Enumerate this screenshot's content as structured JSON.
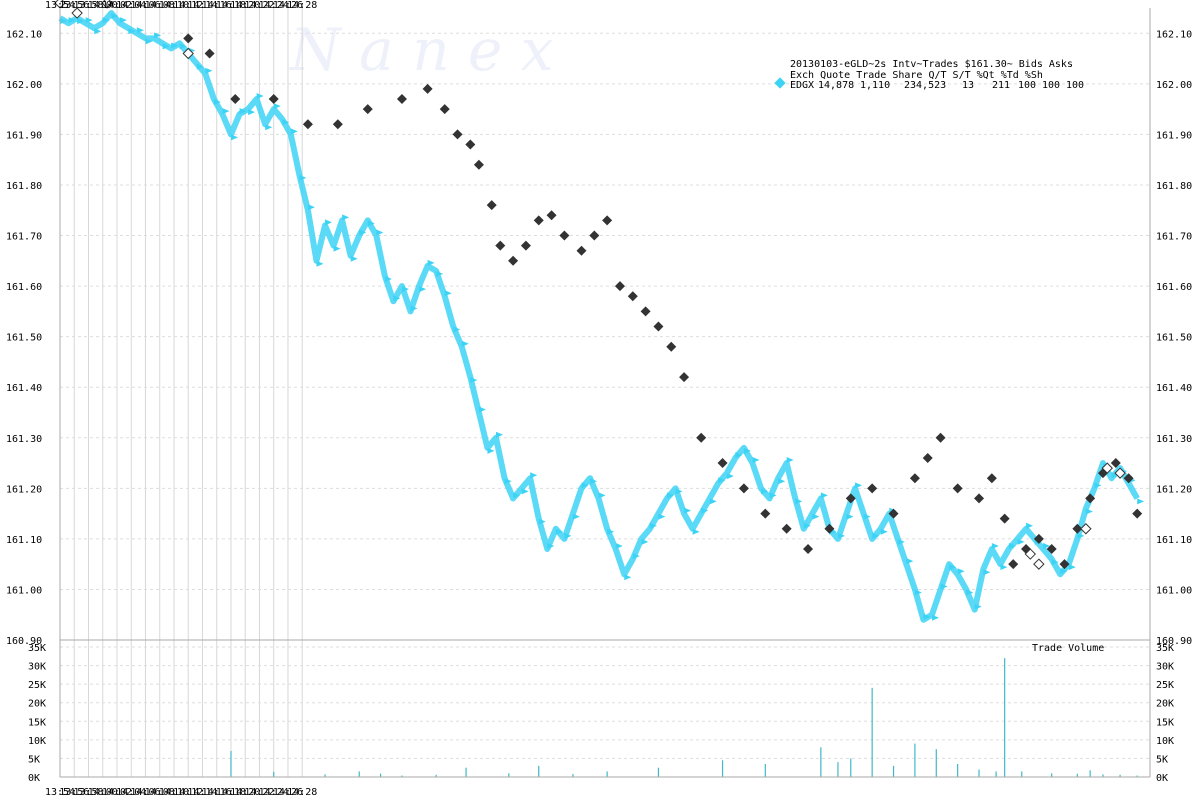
{
  "watermark": "N a n e x",
  "chart_data": [
    {
      "type": "scatter",
      "ylim": [
        160.9,
        162.15
      ],
      "x_labels": [
        "13:54",
        "13:56",
        "13:58",
        "14:00",
        "14:02",
        "14:04",
        "14:06",
        "14:08",
        "14:10",
        "14:12",
        "14:14",
        "14:16",
        "14:18",
        "14:20",
        "14:22",
        "14:24",
        "14:26",
        "14:28"
      ],
      "y_ticks": [
        "162.10",
        "162.00",
        "161.90",
        "161.80",
        "161.70",
        "161.60",
        "161.50",
        "161.40",
        "161.30",
        "161.20",
        "161.10",
        "161.00",
        "160.90"
      ],
      "grid": true,
      "legend": {
        "title_line": "20130103-eGLD~2s Intv~Trades $161.30~ Bids  Asks",
        "header_line": "Exch  Quote Trade   Share  Q/T   S/T  %Qt %Td %Sh",
        "row": {
          "exch": "EDGX",
          "quote": "14,878",
          "trade": "1,110",
          "share": "234,523",
          "qt": "13",
          "st": "211",
          "pct_qt": "100",
          "pct_td": "100",
          "pct_sh": "100"
        },
        "placement": "top-right"
      },
      "colors": {
        "quotes": "#3dd3f5",
        "trades": "#333333",
        "trade_outline": "#ffffff"
      },
      "series": [
        {
          "kind": "quotes",
          "values": [
            [
              13.9,
              162.13
            ],
            [
              13.92,
              162.12
            ],
            [
              13.94,
              162.13
            ],
            [
              13.96,
              162.12
            ],
            [
              13.98,
              162.11
            ],
            [
              14.0,
              162.12
            ],
            [
              14.02,
              162.14
            ],
            [
              14.04,
              162.12
            ],
            [
              14.06,
              162.11
            ],
            [
              14.08,
              162.1
            ],
            [
              14.1,
              162.09
            ],
            [
              14.12,
              162.09
            ],
            [
              14.14,
              162.08
            ],
            [
              14.16,
              162.07
            ],
            [
              14.18,
              162.08
            ],
            [
              14.2,
              162.06
            ],
            [
              14.22,
              162.04
            ],
            [
              14.24,
              162.02
            ],
            [
              14.26,
              161.97
            ],
            [
              14.28,
              161.94
            ],
            [
              14.3,
              161.9
            ],
            [
              14.32,
              161.94
            ],
            [
              14.34,
              161.95
            ],
            [
              14.36,
              161.97
            ],
            [
              14.38,
              161.92
            ],
            [
              14.4,
              161.95
            ],
            [
              14.42,
              161.93
            ],
            [
              14.44,
              161.9
            ],
            [
              14.46,
              161.82
            ],
            [
              14.48,
              161.75
            ],
            [
              14.5,
              161.65
            ],
            [
              14.52,
              161.72
            ],
            [
              14.54,
              161.68
            ],
            [
              14.56,
              161.73
            ],
            [
              14.58,
              161.66
            ],
            [
              14.6,
              161.7
            ],
            [
              14.62,
              161.73
            ],
            [
              14.64,
              161.7
            ],
            [
              14.66,
              161.62
            ],
            [
              14.68,
              161.57
            ],
            [
              14.7,
              161.6
            ],
            [
              14.72,
              161.55
            ],
            [
              14.74,
              161.6
            ],
            [
              14.76,
              161.64
            ],
            [
              14.78,
              161.63
            ],
            [
              14.8,
              161.58
            ],
            [
              14.82,
              161.52
            ],
            [
              14.84,
              161.48
            ],
            [
              14.86,
              161.42
            ],
            [
              14.88,
              161.35
            ],
            [
              14.9,
              161.28
            ],
            [
              14.92,
              161.3
            ],
            [
              14.94,
              161.22
            ],
            [
              14.96,
              161.18
            ],
            [
              14.98,
              161.2
            ],
            [
              15.0,
              161.22
            ],
            [
              15.02,
              161.14
            ],
            [
              15.04,
              161.08
            ],
            [
              15.06,
              161.12
            ],
            [
              15.08,
              161.1
            ],
            [
              15.1,
              161.15
            ],
            [
              15.12,
              161.2
            ],
            [
              15.14,
              161.22
            ],
            [
              15.16,
              161.18
            ],
            [
              15.18,
              161.12
            ],
            [
              15.2,
              161.08
            ],
            [
              15.22,
              161.03
            ],
            [
              15.24,
              161.06
            ],
            [
              15.26,
              161.1
            ],
            [
              15.28,
              161.12
            ],
            [
              15.3,
              161.15
            ],
            [
              15.32,
              161.18
            ],
            [
              15.34,
              161.2
            ],
            [
              15.36,
              161.15
            ],
            [
              15.38,
              161.12
            ],
            [
              15.4,
              161.15
            ],
            [
              15.42,
              161.18
            ],
            [
              15.44,
              161.21
            ],
            [
              15.46,
              161.23
            ],
            [
              15.48,
              161.26
            ],
            [
              15.5,
              161.28
            ],
            [
              15.52,
              161.25
            ],
            [
              15.54,
              161.2
            ],
            [
              15.56,
              161.18
            ],
            [
              15.58,
              161.22
            ],
            [
              15.6,
              161.25
            ],
            [
              15.62,
              161.18
            ],
            [
              15.64,
              161.12
            ],
            [
              15.66,
              161.15
            ],
            [
              15.68,
              161.18
            ],
            [
              15.7,
              161.12
            ],
            [
              15.72,
              161.1
            ],
            [
              15.74,
              161.15
            ],
            [
              15.76,
              161.2
            ],
            [
              15.78,
              161.15
            ],
            [
              15.8,
              161.1
            ],
            [
              15.82,
              161.12
            ],
            [
              15.84,
              161.15
            ],
            [
              15.86,
              161.1
            ],
            [
              15.88,
              161.05
            ],
            [
              15.9,
              161.0
            ],
            [
              15.92,
              160.94
            ],
            [
              15.94,
              160.95
            ],
            [
              15.96,
              161.0
            ],
            [
              15.98,
              161.05
            ],
            [
              16.0,
              161.03
            ],
            [
              16.02,
              161.0
            ],
            [
              16.04,
              160.96
            ],
            [
              16.06,
              161.04
            ],
            [
              16.08,
              161.08
            ],
            [
              16.1,
              161.05
            ],
            [
              16.12,
              161.08
            ],
            [
              16.14,
              161.1
            ],
            [
              16.16,
              161.12
            ],
            [
              16.18,
              161.1
            ],
            [
              16.2,
              161.08
            ],
            [
              16.22,
              161.06
            ],
            [
              16.24,
              161.03
            ],
            [
              16.26,
              161.05
            ],
            [
              16.28,
              161.1
            ],
            [
              16.3,
              161.16
            ],
            [
              16.32,
              161.2
            ],
            [
              16.34,
              161.25
            ],
            [
              16.36,
              161.22
            ],
            [
              16.38,
              161.24
            ],
            [
              16.4,
              161.21
            ],
            [
              16.42,
              161.18
            ]
          ]
        },
        {
          "kind": "trades",
          "values": [
            [
              14.2,
              162.09
            ],
            [
              14.25,
              162.06
            ],
            [
              14.31,
              161.97
            ],
            [
              14.4,
              161.97
            ],
            [
              14.48,
              161.92
            ],
            [
              14.55,
              161.92
            ],
            [
              14.62,
              161.95
            ],
            [
              14.7,
              161.97
            ],
            [
              14.76,
              161.99
            ],
            [
              14.8,
              161.95
            ],
            [
              14.83,
              161.9
            ],
            [
              14.86,
              161.88
            ],
            [
              14.88,
              161.84
            ],
            [
              14.91,
              161.76
            ],
            [
              14.93,
              161.68
            ],
            [
              14.96,
              161.65
            ],
            [
              14.99,
              161.68
            ],
            [
              15.02,
              161.73
            ],
            [
              15.05,
              161.74
            ],
            [
              15.08,
              161.7
            ],
            [
              15.12,
              161.67
            ],
            [
              15.15,
              161.7
            ],
            [
              15.18,
              161.73
            ],
            [
              15.21,
              161.6
            ],
            [
              15.24,
              161.58
            ],
            [
              15.27,
              161.55
            ],
            [
              15.3,
              161.52
            ],
            [
              15.33,
              161.48
            ],
            [
              15.36,
              161.42
            ],
            [
              15.4,
              161.3
            ],
            [
              15.45,
              161.25
            ],
            [
              15.5,
              161.2
            ],
            [
              15.55,
              161.15
            ],
            [
              15.6,
              161.12
            ],
            [
              15.65,
              161.08
            ],
            [
              15.7,
              161.12
            ],
            [
              15.75,
              161.18
            ],
            [
              15.8,
              161.2
            ],
            [
              15.85,
              161.15
            ],
            [
              15.9,
              161.22
            ],
            [
              15.93,
              161.26
            ],
            [
              15.96,
              161.3
            ],
            [
              16.0,
              161.2
            ],
            [
              16.05,
              161.18
            ],
            [
              16.08,
              161.22
            ],
            [
              16.11,
              161.14
            ],
            [
              16.13,
              161.05
            ],
            [
              16.16,
              161.08
            ],
            [
              16.19,
              161.1
            ],
            [
              16.22,
              161.08
            ],
            [
              16.25,
              161.05
            ],
            [
              16.28,
              161.12
            ],
            [
              16.31,
              161.18
            ],
            [
              16.34,
              161.23
            ],
            [
              16.37,
              161.25
            ],
            [
              16.4,
              161.22
            ],
            [
              16.42,
              161.15
            ]
          ]
        },
        {
          "kind": "trades_outlined",
          "values": [
            [
              13.9,
              162.16
            ],
            [
              13.94,
              162.14
            ],
            [
              14.01,
              162.16
            ],
            [
              14.2,
              162.06
            ],
            [
              16.17,
              161.07
            ],
            [
              16.19,
              161.05
            ],
            [
              16.3,
              161.12
            ],
            [
              16.35,
              161.24
            ],
            [
              16.38,
              161.23
            ]
          ]
        }
      ]
    },
    {
      "type": "bar",
      "title": "Trade Volume",
      "ylim": [
        0,
        35000
      ],
      "y_ticks": [
        "35K",
        "30K",
        "25K",
        "20K",
        "15K",
        "10K",
        "5K",
        "0K"
      ],
      "color": "#3fb8c8",
      "series": [
        {
          "values": [
            [
              14.3,
              7000
            ],
            [
              14.4,
              1400
            ],
            [
              14.52,
              700
            ],
            [
              14.6,
              1500
            ],
            [
              14.65,
              900
            ],
            [
              14.7,
              400
            ],
            [
              14.78,
              600
            ],
            [
              14.85,
              2500
            ],
            [
              14.95,
              1000
            ],
            [
              15.02,
              3000
            ],
            [
              15.1,
              800
            ],
            [
              15.18,
              1500
            ],
            [
              15.3,
              2500
            ],
            [
              15.45,
              4500
            ],
            [
              15.55,
              3500
            ],
            [
              15.68,
              8000
            ],
            [
              15.72,
              4000
            ],
            [
              15.75,
              5000
            ],
            [
              15.8,
              24000
            ],
            [
              15.85,
              3000
            ],
            [
              15.9,
              9000
            ],
            [
              15.95,
              7500
            ],
            [
              16.0,
              3500
            ],
            [
              16.05,
              2000
            ],
            [
              16.09,
              1500
            ],
            [
              16.11,
              32000
            ],
            [
              16.15,
              1500
            ],
            [
              16.22,
              1000
            ],
            [
              16.28,
              900
            ],
            [
              16.31,
              1800
            ],
            [
              16.34,
              700
            ],
            [
              16.38,
              600
            ],
            [
              16.42,
              400
            ]
          ]
        }
      ]
    }
  ]
}
